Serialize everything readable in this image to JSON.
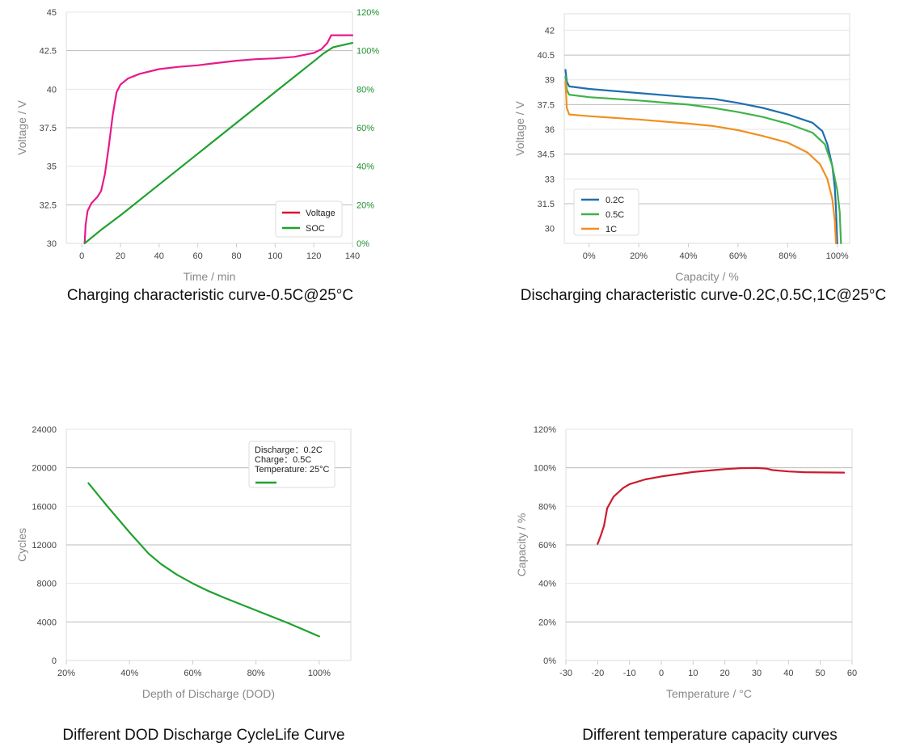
{
  "chart_data": [
    {
      "type": "line",
      "caption": "Charging characteristic curve-0.5C@25°C",
      "xlabel": "Time / min",
      "ylabel": "Voltage / V",
      "y2label": "",
      "xlim": [
        -8,
        140
      ],
      "ylim": [
        30,
        45
      ],
      "y2lim": [
        0,
        120
      ],
      "xticks": [
        "0",
        "20",
        "40",
        "60",
        "80",
        "100",
        "120",
        "140"
      ],
      "yticks": [
        "30",
        "32.5",
        "35",
        "37.5",
        "40",
        "42.5",
        "45"
      ],
      "y2ticks": [
        "0%",
        "20%",
        "40%",
        "60%",
        "80%",
        "100%",
        "120%"
      ],
      "legend_position": "bottom-right",
      "grid": true,
      "series": [
        {
          "name": "Voltage",
          "axis": "left",
          "color": "#e8198b",
          "legend_color": "#d9112a",
          "points": [
            [
              1.5,
              30
            ],
            [
              2,
              31.2
            ],
            [
              3,
              32.1
            ],
            [
              5,
              32.6
            ],
            [
              8,
              33
            ],
            [
              10,
              33.4
            ],
            [
              12,
              34.5
            ],
            [
              14,
              36.3
            ],
            [
              16,
              38.3
            ],
            [
              18,
              39.8
            ],
            [
              20,
              40.3
            ],
            [
              24,
              40.7
            ],
            [
              30,
              41
            ],
            [
              40,
              41.3
            ],
            [
              50,
              41.45
            ],
            [
              60,
              41.55
            ],
            [
              70,
              41.7
            ],
            [
              80,
              41.85
            ],
            [
              90,
              41.95
            ],
            [
              100,
              42
            ],
            [
              110,
              42.1
            ],
            [
              120,
              42.35
            ],
            [
              124,
              42.6
            ],
            [
              127,
              43
            ],
            [
              129,
              43.5
            ],
            [
              130,
              43.5
            ],
            [
              140,
              43.5
            ]
          ]
        },
        {
          "name": "SOC",
          "axis": "right",
          "color": "#1fa12d",
          "points": [
            [
              1.5,
              0
            ],
            [
              10,
              7
            ],
            [
              20,
              14.5
            ],
            [
              40,
              30.5
            ],
            [
              60,
              46.5
            ],
            [
              80,
              62.5
            ],
            [
              100,
              78.5
            ],
            [
              120,
              94.5
            ],
            [
              125,
              98.5
            ],
            [
              128,
              100.5
            ],
            [
              130,
              101.8
            ],
            [
              140,
              104
            ]
          ]
        }
      ]
    },
    {
      "type": "line",
      "caption": "Discharging characteristic curve-0.2C,0.5C,1C@25°C",
      "xlabel": "Capacity / %",
      "ylabel": "Voltage / V",
      "xlim": [
        -10,
        105
      ],
      "ylim": [
        29.1,
        43
      ],
      "xticks": [
        "0%",
        "20%",
        "40%",
        "60%",
        "80%",
        "100%"
      ],
      "yticks": [
        "30",
        "31.5",
        "33",
        "34.5",
        "36",
        "37.5",
        "39",
        "40.5",
        "42"
      ],
      "legend_position": "bottom-left",
      "grid": true,
      "series": [
        {
          "name": "0.2C",
          "color": "#1f6fae",
          "points": [
            [
              -9.5,
              39.6
            ],
            [
              -9,
              38.9
            ],
            [
              -8,
              38.6
            ],
            [
              0,
              38.45
            ],
            [
              20,
              38.2
            ],
            [
              40,
              37.95
            ],
            [
              50,
              37.85
            ],
            [
              60,
              37.6
            ],
            [
              70,
              37.3
            ],
            [
              80,
              36.9
            ],
            [
              90,
              36.4
            ],
            [
              94,
              35.9
            ],
            [
              96,
              35.1
            ],
            [
              98,
              33.8
            ],
            [
              99,
              32.5
            ],
            [
              99.5,
              31.2
            ],
            [
              100,
              29.1
            ]
          ]
        },
        {
          "name": "0.5C",
          "color": "#3fb34a",
          "points": [
            [
              -9.5,
              39.2
            ],
            [
              -9,
              38.4
            ],
            [
              -8,
              38.1
            ],
            [
              0,
              37.95
            ],
            [
              20,
              37.75
            ],
            [
              40,
              37.5
            ],
            [
              50,
              37.3
            ],
            [
              60,
              37.05
            ],
            [
              70,
              36.75
            ],
            [
              80,
              36.35
            ],
            [
              90,
              35.8
            ],
            [
              95,
              35.1
            ],
            [
              98,
              33.8
            ],
            [
              100,
              32.3
            ],
            [
              101,
              31
            ],
            [
              101.5,
              29.1
            ]
          ]
        },
        {
          "name": "1C",
          "color": "#f09020",
          "points": [
            [
              -9.5,
              38.9
            ],
            [
              -9,
              37.3
            ],
            [
              -8,
              36.9
            ],
            [
              0,
              36.8
            ],
            [
              20,
              36.6
            ],
            [
              40,
              36.35
            ],
            [
              50,
              36.2
            ],
            [
              60,
              35.95
            ],
            [
              70,
              35.6
            ],
            [
              80,
              35.2
            ],
            [
              88,
              34.6
            ],
            [
              93,
              33.9
            ],
            [
              96,
              33
            ],
            [
              98,
              31.8
            ],
            [
              99,
              30.5
            ],
            [
              99.5,
              29.1
            ]
          ]
        }
      ]
    },
    {
      "type": "line",
      "caption": "Different DOD Discharge CycleLife Curve",
      "xlabel": "Depth of Discharge (DOD)",
      "ylabel": "Cycles",
      "xlim": [
        20,
        110
      ],
      "ylim": [
        0,
        24000
      ],
      "xticks": [
        "20%",
        "40%",
        "60%",
        "80%",
        "100%"
      ],
      "yticks": [
        "0",
        "4000",
        "8000",
        "12000",
        "16000",
        "20000",
        "24000"
      ],
      "legend_position": "top-right",
      "legend_lines": [
        "Discharge：0.2C",
        "Charge：0.5C",
        "Temperature: 25°C"
      ],
      "grid": true,
      "series": [
        {
          "name": "",
          "color": "#1fa12d",
          "points": [
            [
              27,
              18400
            ],
            [
              33,
              16000
            ],
            [
              40,
              13300
            ],
            [
              46,
              11100
            ],
            [
              50,
              10000
            ],
            [
              55,
              8900
            ],
            [
              60,
              8000
            ],
            [
              65,
              7200
            ],
            [
              70,
              6500
            ],
            [
              80,
              5200
            ],
            [
              90,
              3900
            ],
            [
              100,
              2500
            ]
          ]
        }
      ]
    },
    {
      "type": "line",
      "caption": "Different temperature capacity curves",
      "xlabel": "Temperature / °C",
      "ylabel": "Capacity / %",
      "xlim": [
        -30,
        60
      ],
      "ylim": [
        0,
        120
      ],
      "xticks": [
        "-30",
        "-20",
        "-10",
        "0",
        "10",
        "20",
        "30",
        "40",
        "50",
        "60"
      ],
      "yticks": [
        "0%",
        "20%",
        "40%",
        "60%",
        "80%",
        "100%",
        "120%"
      ],
      "legend_position": "none",
      "grid": true,
      "series": [
        {
          "name": "",
          "color": "#cc1a2f",
          "points": [
            [
              -20,
              60.5
            ],
            [
              -19,
              65
            ],
            [
              -18,
              70
            ],
            [
              -17,
              79
            ],
            [
              -15,
              85
            ],
            [
              -12,
              89.5
            ],
            [
              -10,
              91.5
            ],
            [
              -5,
              94
            ],
            [
              0,
              95.5
            ],
            [
              10,
              97.8
            ],
            [
              20,
              99.3
            ],
            [
              25,
              99.8
            ],
            [
              30,
              99.9
            ],
            [
              33,
              99.6
            ],
            [
              35,
              98.8
            ],
            [
              40,
              98.1
            ],
            [
              45,
              97.7
            ],
            [
              50,
              97.6
            ],
            [
              57.5,
              97.5
            ]
          ]
        }
      ]
    }
  ]
}
